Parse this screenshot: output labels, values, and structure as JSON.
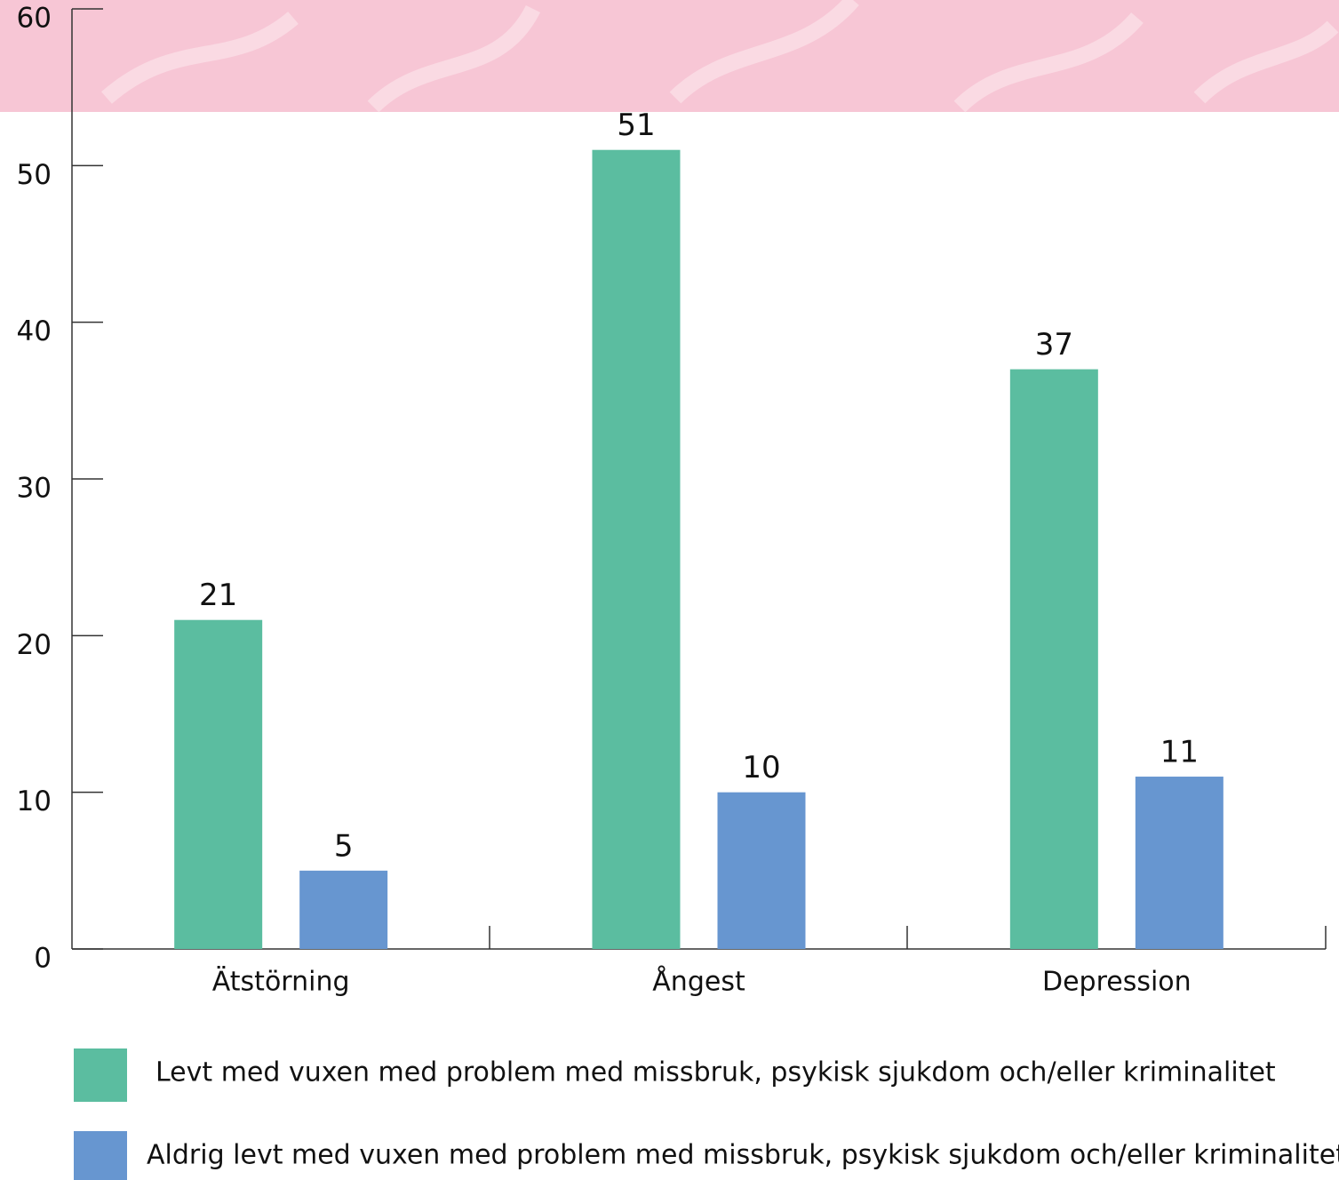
{
  "chart_data": {
    "type": "bar",
    "categories": [
      "Ätstörning",
      "Ångest",
      "Depression"
    ],
    "series": [
      {
        "name": "Levt med vuxen med problem med missbruk, psykisk sjukdom och/eller kriminalitet",
        "color": "#5bbda0",
        "values": [
          21,
          51,
          37
        ]
      },
      {
        "name": "Aldrig levt med vuxen med problem med missbruk, psykisk sjukdom och/eller kriminalitet",
        "color": "#6796d0",
        "values": [
          5,
          10,
          11
        ]
      }
    ],
    "ylim": [
      0,
      60
    ],
    "yticks": [
      0,
      10,
      20,
      30,
      40,
      50,
      60
    ]
  }
}
